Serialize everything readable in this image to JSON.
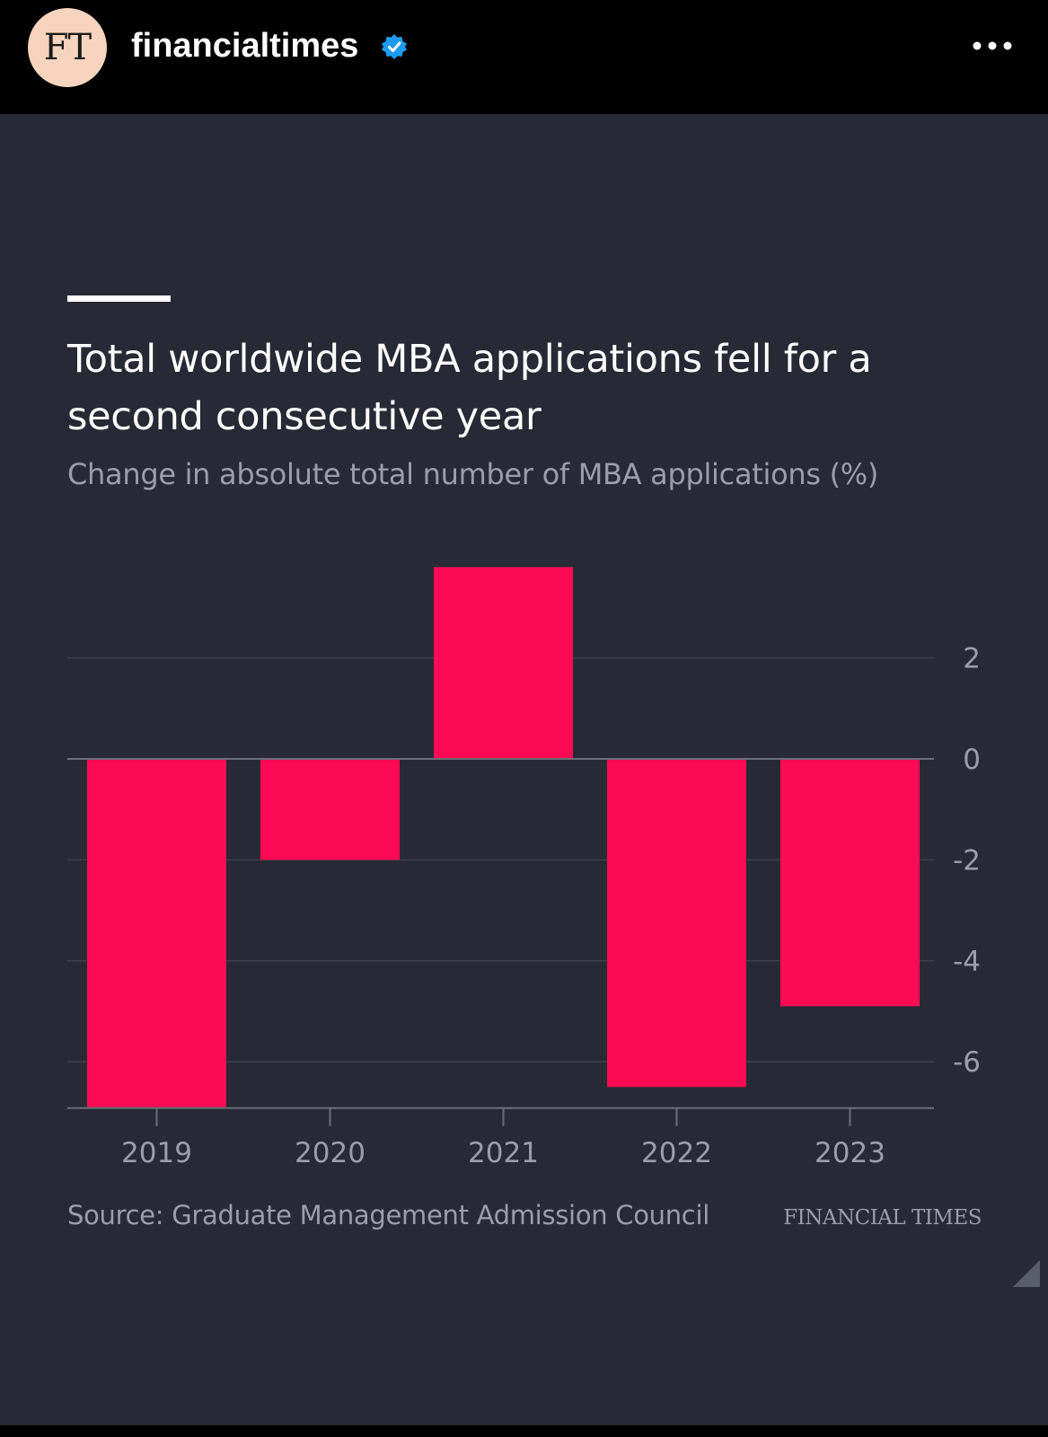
{
  "post": {
    "avatar_text": "FT",
    "username": "financialtimes",
    "verified_icon": "verified-badge-icon",
    "menu_icon": "more-options-icon"
  },
  "colors": {
    "bar": "#ff0a54",
    "background": "#272a34",
    "text": "#ffffff",
    "muted_text": "#9a9ea8",
    "verified": "#1d9bf0",
    "avatar_bg": "#f6d4bd"
  },
  "chart_data": {
    "type": "bar",
    "title": "Total worldwide MBA applications fell for a second consecutive year",
    "subtitle": "Change in absolute total number of MBA applications (%)",
    "categories": [
      "2019",
      "2020",
      "2021",
      "2022",
      "2023"
    ],
    "values": [
      -6.9,
      -2.0,
      3.8,
      -6.5,
      -4.9
    ],
    "ylim": [
      -6.9,
      3.8
    ],
    "yticks": [
      "2",
      "0",
      "-2",
      "-4",
      "-6"
    ],
    "ytick_values": [
      2,
      0,
      -2,
      -4,
      -6
    ],
    "y_axis_position": "right",
    "grid": true,
    "source": "Source: Graduate Management Admission Council",
    "brand": "FINANCIAL TIMES"
  }
}
